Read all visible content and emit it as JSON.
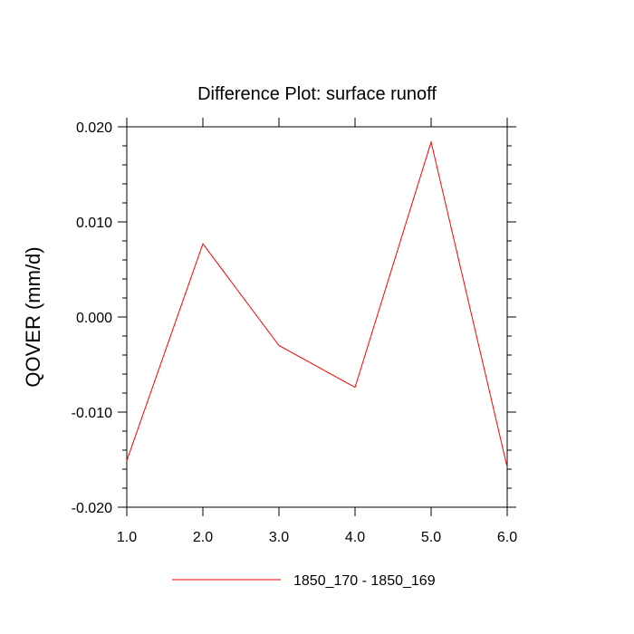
{
  "chart_data": {
    "type": "line",
    "title": "Difference Plot: surface runoff",
    "xlabel": "",
    "ylabel": "QOVER  (mm/d)",
    "xlim": [
      1.0,
      6.0
    ],
    "ylim": [
      -0.02,
      0.02
    ],
    "x_ticks": [
      1.0,
      2.0,
      3.0,
      4.0,
      5.0,
      6.0
    ],
    "x_tick_labels": [
      "1.0",
      "2.0",
      "3.0",
      "4.0",
      "5.0",
      "6.0"
    ],
    "y_ticks": [
      -0.02,
      -0.01,
      0.0,
      0.01,
      0.02
    ],
    "y_tick_labels": [
      "-0.020",
      "-0.010",
      "0.000",
      "0.010",
      "0.020"
    ],
    "grid": false,
    "legend_position": "bottom",
    "series": [
      {
        "name": "1850_170 - 1850_169",
        "color": "#ff0000",
        "x": [
          1.0,
          2.0,
          3.0,
          4.0,
          5.0,
          6.0
        ],
        "y": [
          -0.0151,
          0.0077,
          -0.003,
          -0.0074,
          0.0184,
          -0.0158
        ]
      }
    ]
  }
}
